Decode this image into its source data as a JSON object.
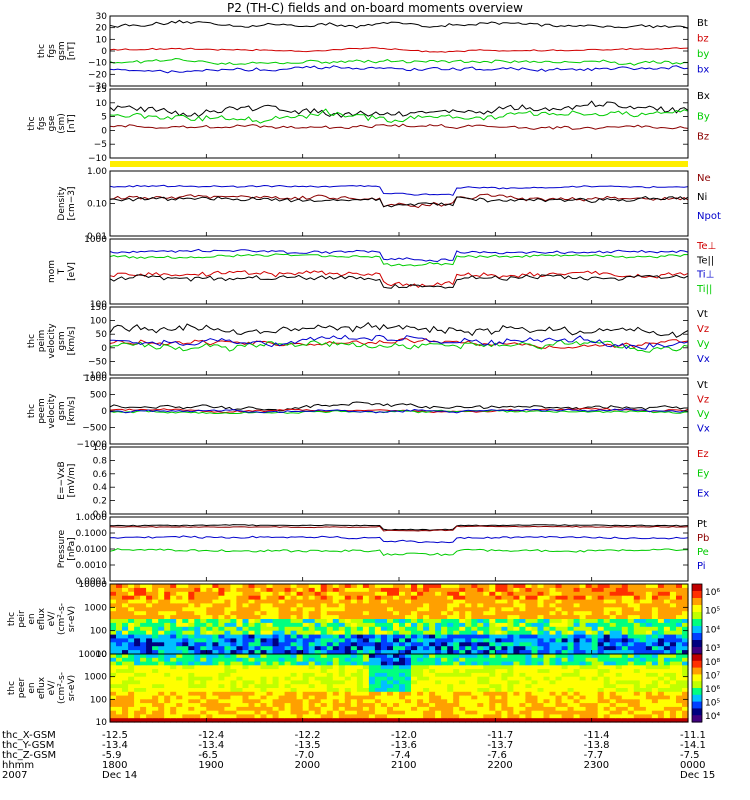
{
  "title": "P2 (TH-C) fields and on-board moments overview",
  "chart_data": {
    "type": "line",
    "time_ticks": [
      "1800",
      "1900",
      "2000",
      "2100",
      "2200",
      "2300",
      "0000"
    ],
    "orbit_rows": [
      {
        "label": "thc_X-GSM",
        "values": [
          "-12.5",
          "-12.4",
          "-12.2",
          "-12.0",
          "-11.7",
          "-11.4",
          "-11.1"
        ]
      },
      {
        "label": "thc_Y-GSM",
        "values": [
          "-13.4",
          "-13.4",
          "-13.5",
          "-13.6",
          "-13.7",
          "-13.8",
          "-14.1"
        ]
      },
      {
        "label": "thc_Z-GSM",
        "values": [
          "-5.9",
          "-6.5",
          "-7.0",
          "-7.4",
          "-7.6",
          "-7.7",
          "-7.5"
        ]
      },
      {
        "label": "hhmm",
        "values": [
          "1800",
          "1900",
          "2000",
          "2100",
          "2200",
          "2300",
          "0000"
        ]
      },
      {
        "label": "2007",
        "values": [
          "Dec 14",
          "",
          "",
          "",
          "",
          "",
          "Dec 15"
        ]
      }
    ],
    "panels": [
      {
        "id": "fgs-gsm",
        "ylabel": [
          "thc",
          "fgs",
          "gsm",
          "[nT]"
        ],
        "ylim": [
          -30,
          30
        ],
        "scale": "linear",
        "ticks": [
          "30",
          "20",
          "10",
          "0",
          "−10",
          "−20",
          "−30"
        ],
        "series": [
          {
            "name": "Bt",
            "color": "#000000",
            "level": 22,
            "noise": 2
          },
          {
            "name": "bz",
            "color": "#d00000",
            "level": 1,
            "noise": 1
          },
          {
            "name": "by",
            "color": "#00cc00",
            "level": -9,
            "noise": 2
          },
          {
            "name": "bx",
            "color": "#0000cc",
            "level": -16,
            "noise": 2
          }
        ]
      },
      {
        "id": "fgs-gse",
        "ylabel": [
          "thc",
          "fgs",
          "gse",
          "(sm)",
          "[nT]"
        ],
        "ylim": [
          -15,
          15
        ],
        "scale": "linear",
        "ticks": [
          "15",
          "10",
          "5",
          "0",
          "−5",
          "−10"
        ],
        "series": [
          {
            "name": "Bx",
            "color": "#000000",
            "level": 6,
            "noise": 2
          },
          {
            "name": "By",
            "color": "#00cc00",
            "level": 3,
            "noise": 2
          },
          {
            "name": "Bz",
            "color": "#8b0000",
            "level": -1,
            "noise": 1
          }
        ]
      },
      {
        "id": "density",
        "ylabel": [
          "Density",
          "[cm−3]"
        ],
        "ylim": [
          0.01,
          2
        ],
        "scale": "log",
        "ticks": [
          "1.00",
          "0.10",
          "0.01"
        ],
        "series": [
          {
            "name": "Ne",
            "color": "#8b0000",
            "level": 0.22,
            "noise": 0.2
          },
          {
            "name": "Ni",
            "color": "#000000",
            "level": 0.2,
            "noise": 0.2
          },
          {
            "name": "Npot",
            "color": "#0000cc",
            "level": 0.55,
            "noise": 0.08
          }
        ]
      },
      {
        "id": "temperature",
        "ylabel": [
          "mom",
          "T",
          "[eV]"
        ],
        "ylim": [
          50,
          5000
        ],
        "scale": "log",
        "ticks": [
          "1000",
          "100"
        ],
        "series": [
          {
            "name": "Te⊥",
            "color": "#d00000",
            "level": 400,
            "noise": 0.2
          },
          {
            "name": "Te||",
            "color": "#000000",
            "level": 300,
            "noise": 0.2
          },
          {
            "name": "Ti⊥",
            "color": "#0000cc",
            "level": 2000,
            "noise": 0.12
          },
          {
            "name": "Ti||",
            "color": "#00cc00",
            "level": 1500,
            "noise": 0.12
          }
        ]
      },
      {
        "id": "peim-velocity",
        "ylabel": [
          "thc",
          "peim",
          "velocity",
          "gsm",
          "[km/s]"
        ],
        "ylim": [
          -150,
          150
        ],
        "scale": "linear",
        "ticks": [
          "150",
          "100",
          "50",
          "0",
          "−50",
          "−100"
        ],
        "series": [
          {
            "name": "Vt",
            "color": "#000000",
            "level": 50,
            "noise": 25
          },
          {
            "name": "Vz",
            "color": "#d00000",
            "level": -10,
            "noise": 15
          },
          {
            "name": "Vy",
            "color": "#00cc00",
            "level": -20,
            "noise": 20
          },
          {
            "name": "Vx",
            "color": "#0000cc",
            "level": 0,
            "noise": 20
          }
        ]
      },
      {
        "id": "peem-velocity",
        "ylabel": [
          "thc",
          "peem",
          "velocity",
          "gsm",
          "[km/s]"
        ],
        "ylim": [
          -1000,
          1000
        ],
        "scale": "linear",
        "ticks": [
          "1000",
          "500",
          "0",
          "−500",
          "−1000"
        ],
        "series": [
          {
            "name": "Vt",
            "color": "#000000",
            "level": 120,
            "noise": 70
          },
          {
            "name": "Vz",
            "color": "#d00000",
            "level": 20,
            "noise": 40
          },
          {
            "name": "Vy",
            "color": "#00cc00",
            "level": -20,
            "noise": 40
          },
          {
            "name": "Vx",
            "color": "#0000cc",
            "level": 0,
            "noise": 50
          }
        ]
      },
      {
        "id": "e-field",
        "ylabel": [
          "E=−VxB",
          "[mV/m]"
        ],
        "ylim": [
          0,
          1
        ],
        "scale": "linear",
        "ticks": [
          "1.0",
          "0.8",
          "0.6",
          "0.4",
          "0.2",
          "0.0"
        ],
        "series": [
          {
            "name": "Ez",
            "color": "#d00000"
          },
          {
            "name": "Ey",
            "color": "#00cc00"
          },
          {
            "name": "Ex",
            "color": "#0000cc"
          }
        ]
      },
      {
        "id": "pressure",
        "ylabel": [
          "Pressure",
          "[nPa]"
        ],
        "ylim": [
          0.0001,
          1
        ],
        "scale": "log",
        "ticks": [
          "1.0000",
          "0.1000",
          "0.0100",
          "0.0010",
          "0.0001"
        ],
        "series": [
          {
            "name": "Pt",
            "color": "#000000",
            "level": 0.3,
            "noise": 0.08
          },
          {
            "name": "Pb",
            "color": "#8b0000",
            "level": 0.25,
            "noise": 0.08
          },
          {
            "name": "Pe",
            "color": "#00cc00",
            "level": 0.008,
            "noise": 0.2
          },
          {
            "name": "Pi",
            "color": "#0000cc",
            "level": 0.05,
            "noise": 0.15
          }
        ]
      },
      {
        "id": "peir-spectrogram",
        "type": "heatmap",
        "ylabel": [
          "thc",
          "peir",
          "en",
          "eflux",
          "eV/",
          "(cm²-s-",
          "sr-eV)"
        ],
        "ylim": [
          10,
          10000
        ],
        "scale": "log",
        "ticks": [
          "10000",
          "1000",
          "100",
          "10"
        ],
        "colorbar_ticks": [
          "10⁶",
          "10⁵",
          "10⁴",
          "10³"
        ]
      },
      {
        "id": "peer-spectrogram",
        "type": "heatmap",
        "ylabel": [
          "thc",
          "peer",
          "en",
          "eflux",
          "eV/",
          "(cm²-s-",
          "sr-eV)"
        ],
        "ylim": [
          10,
          10000
        ],
        "scale": "log",
        "ticks": [
          "10000",
          "1000",
          "100",
          "10"
        ],
        "colorbar_ticks": [
          "10⁸",
          "10⁷",
          "10⁶",
          "10⁵",
          "10⁴"
        ]
      }
    ]
  }
}
